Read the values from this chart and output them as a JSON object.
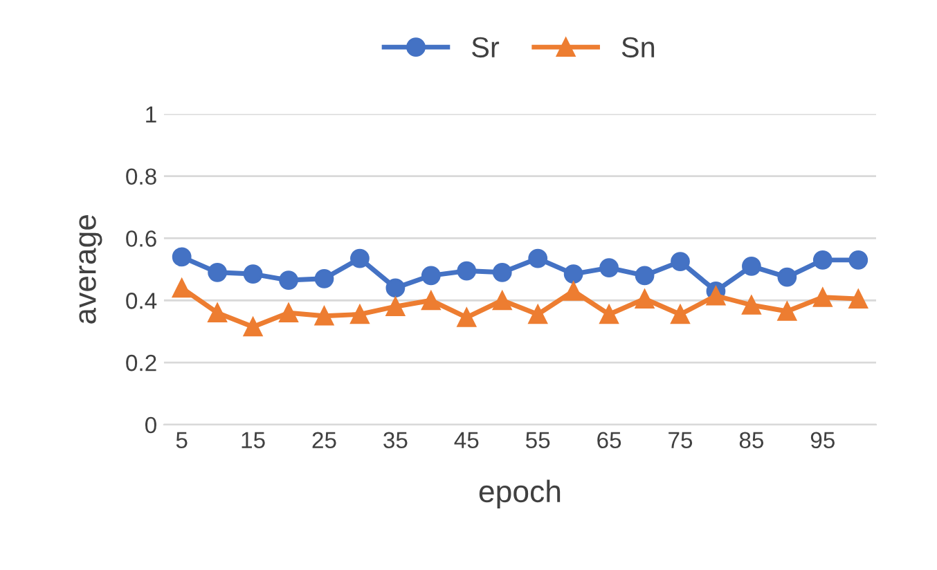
{
  "chart_data": {
    "type": "line",
    "xlabel": "epoch",
    "ylabel": "average",
    "categories": [
      "5",
      null,
      "15",
      null,
      "25",
      null,
      "35",
      null,
      "45",
      null,
      "55",
      null,
      "65",
      null,
      "75",
      null,
      "85",
      null,
      "95",
      null
    ],
    "series": [
      {
        "name": "Sr",
        "color": "#4472c4",
        "marker": "circle",
        "values": [
          0.54,
          0.49,
          0.485,
          0.465,
          0.47,
          0.535,
          0.44,
          0.48,
          0.495,
          0.49,
          0.535,
          0.485,
          0.505,
          0.48,
          0.525,
          0.43,
          0.51,
          0.475,
          0.53,
          0.53
        ]
      },
      {
        "name": "Sn",
        "color": "#ed7d31",
        "marker": "triangle",
        "values": [
          0.44,
          0.36,
          0.315,
          0.36,
          0.35,
          0.355,
          0.38,
          0.4,
          0.345,
          0.4,
          0.355,
          0.43,
          0.355,
          0.405,
          0.355,
          0.415,
          0.385,
          0.365,
          0.41,
          0.405
        ]
      }
    ],
    "ylim": [
      0,
      1
    ],
    "yticks": [
      0,
      0.2,
      0.4,
      0.6,
      0.8,
      1
    ],
    "grid": "y",
    "legend": "top"
  }
}
